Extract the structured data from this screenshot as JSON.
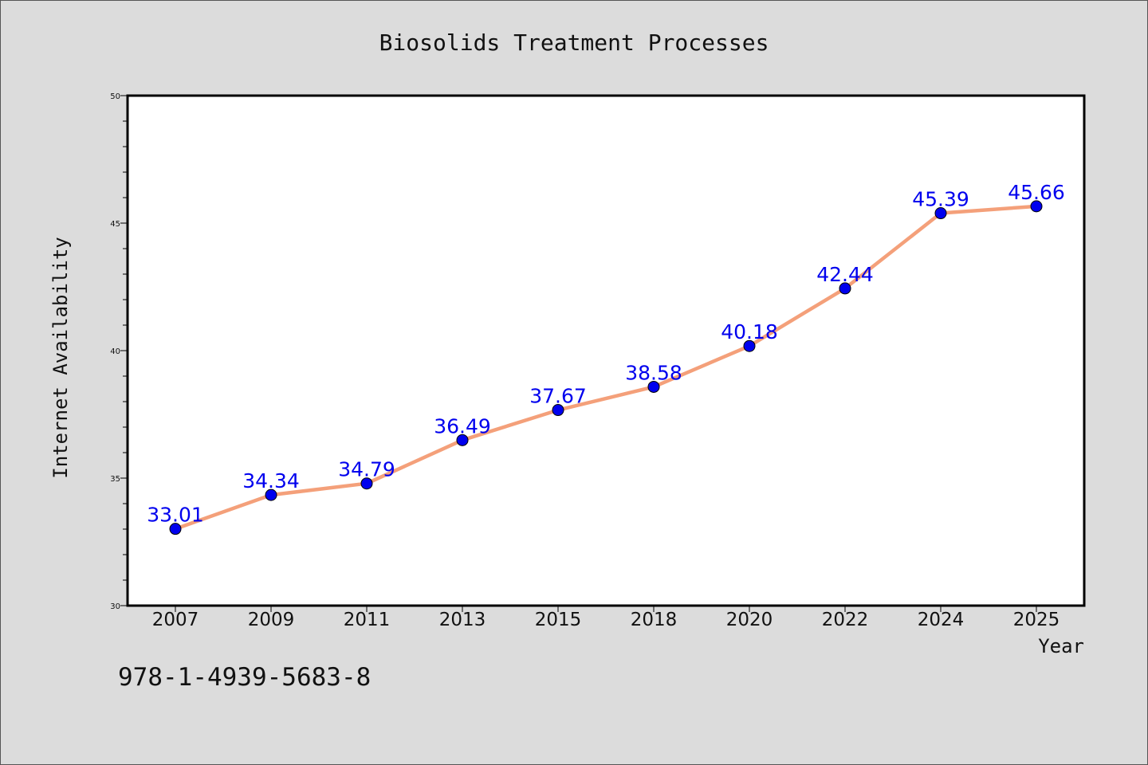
{
  "chart_data": {
    "type": "line",
    "title": "Biosolids Treatment Processes",
    "xlabel": "Year",
    "ylabel": "Internet Availability",
    "categories": [
      "2007",
      "2009",
      "2011",
      "2013",
      "2015",
      "2018",
      "2020",
      "2022",
      "2024",
      "2025"
    ],
    "series": [
      {
        "values": [
          33.01,
          34.34,
          34.79,
          36.49,
          37.67,
          38.58,
          40.18,
          42.44,
          45.39,
          45.66
        ],
        "labels": [
          "33.01",
          "34.34",
          "34.79",
          "36.49",
          "37.67",
          "38.58",
          "40.18",
          "42.44",
          "45.39",
          "45.66"
        ]
      }
    ],
    "ylim": [
      30,
      50
    ],
    "yticks": [
      "30",
      "35",
      "40",
      "45",
      "50"
    ],
    "yminor_step": 1,
    "grid": false,
    "line_color": "#f4a07a",
    "marker_color": "#0000ee",
    "label_color": "#0000ee"
  },
  "footer": {
    "code": "978-1-4939-5683-8"
  }
}
